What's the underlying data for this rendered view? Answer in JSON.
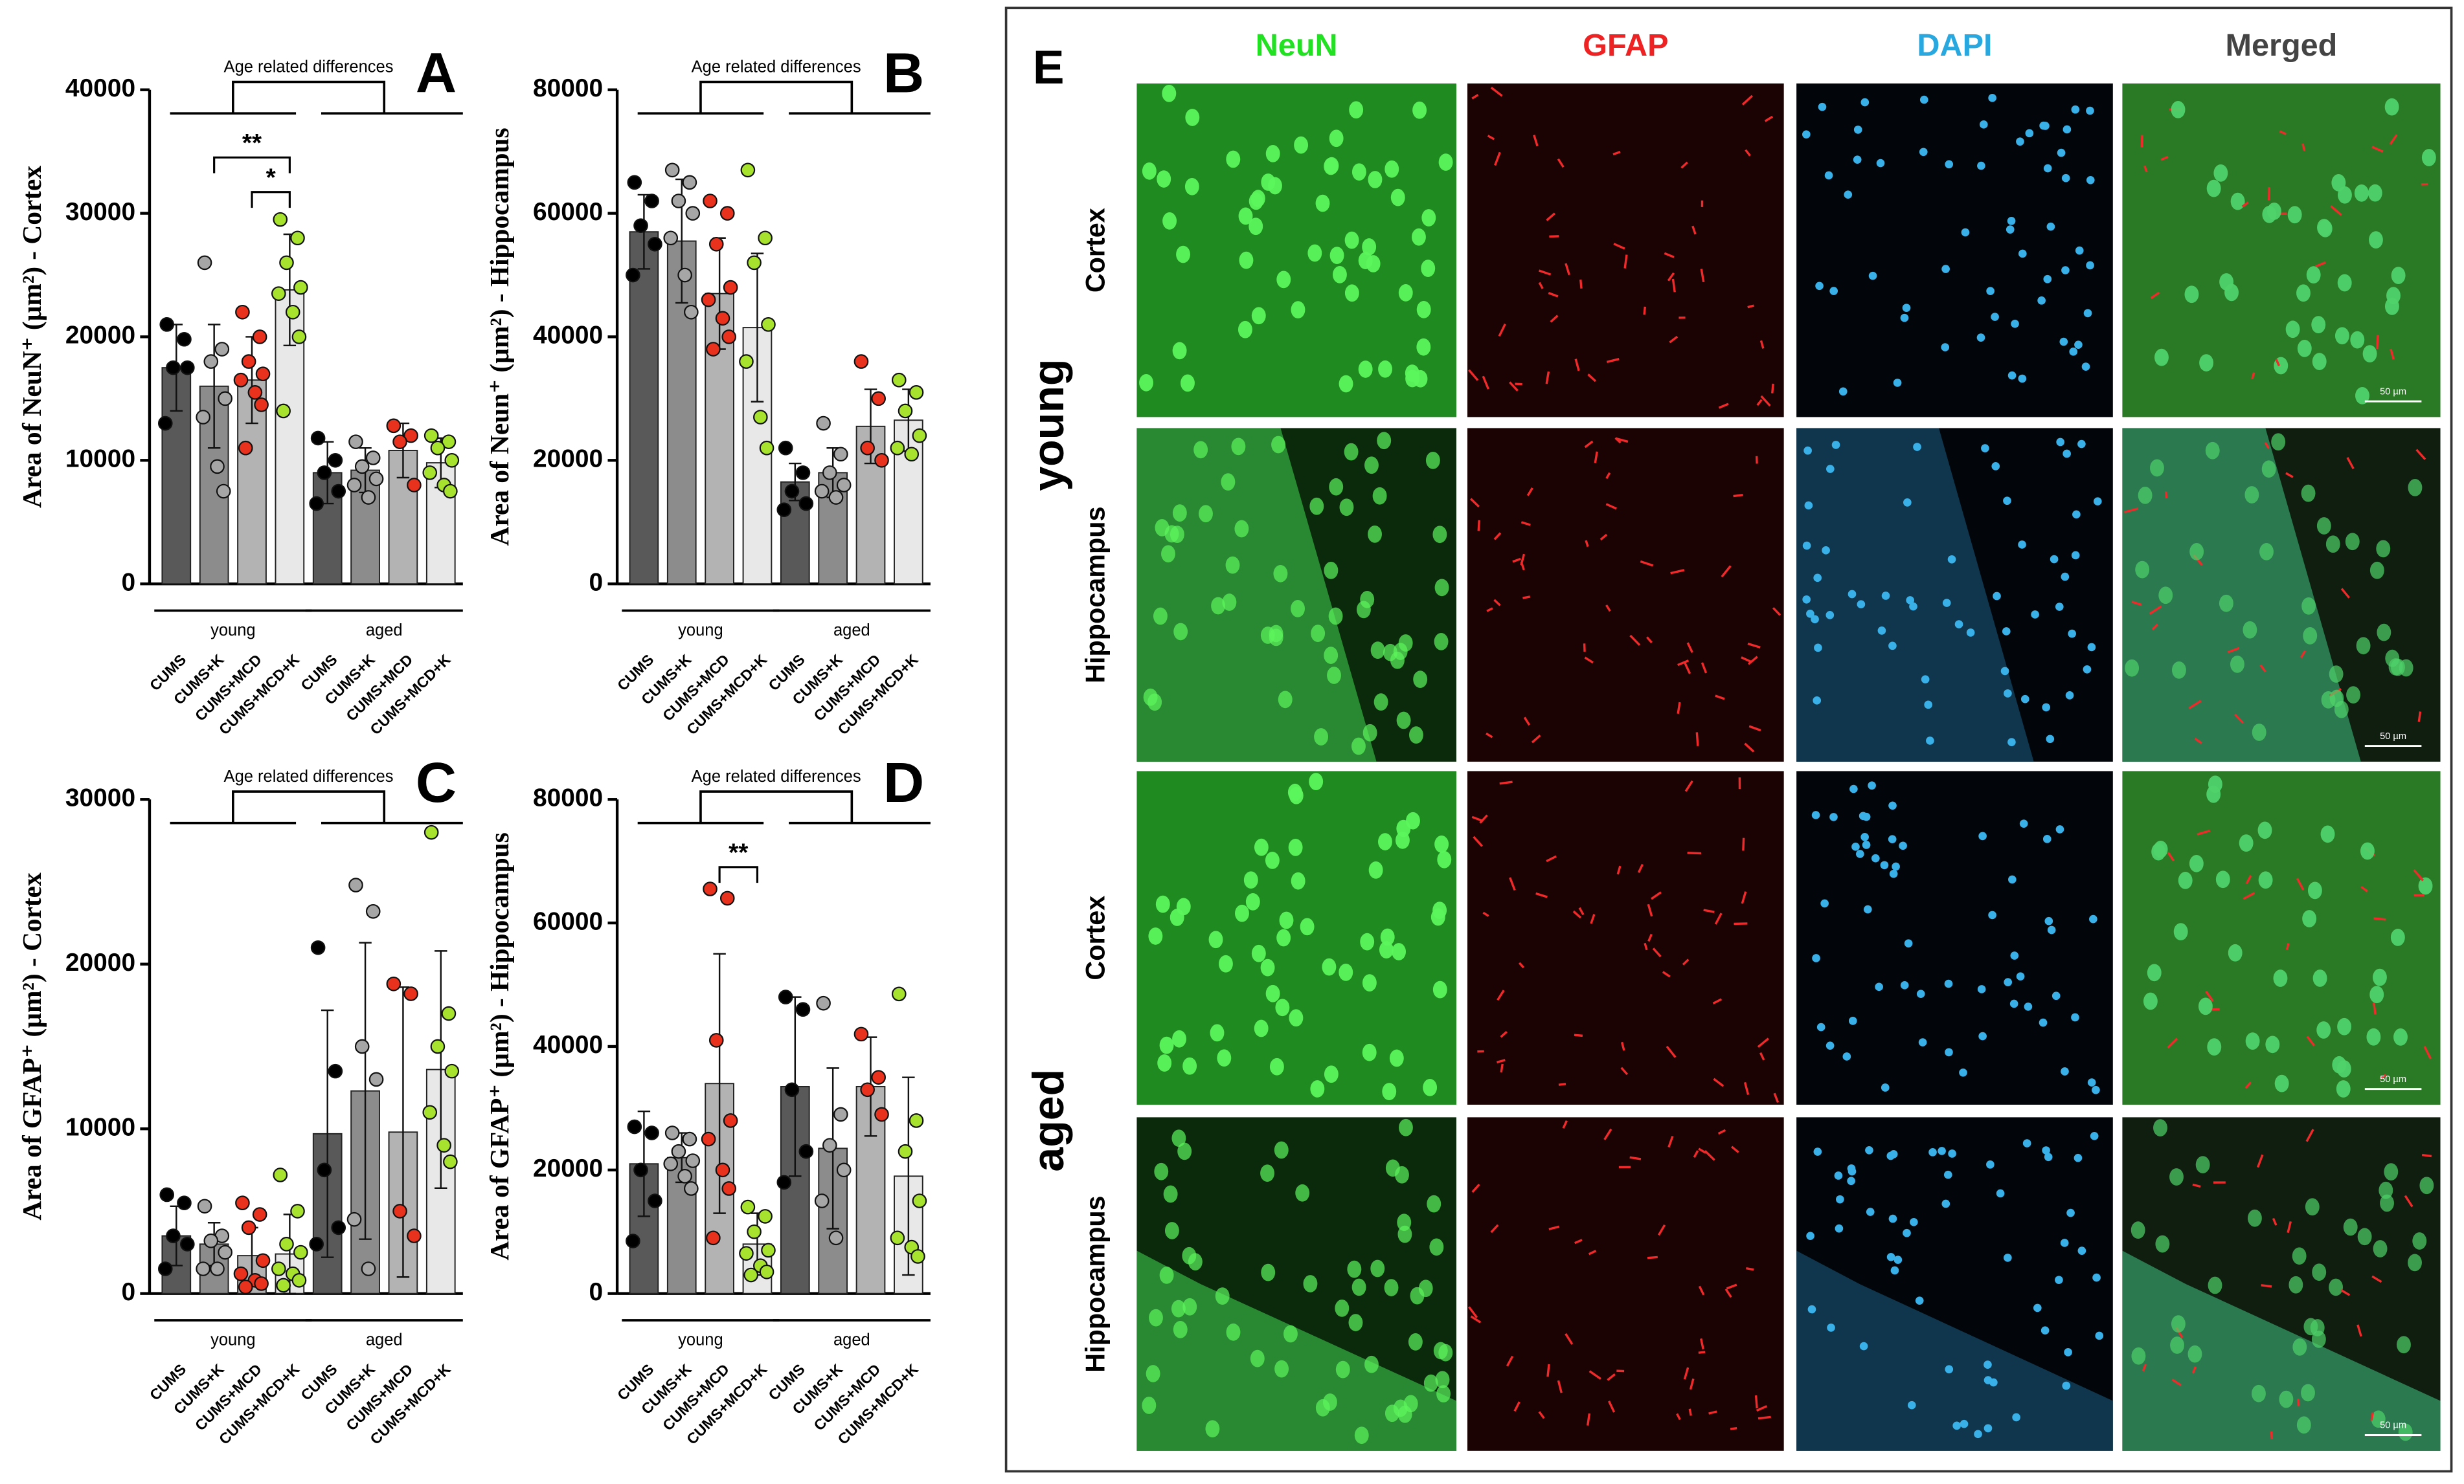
{
  "chart_data": [
    {
      "type": "bar",
      "panel": "A",
      "ylabel": "Area of NeuN⁺ (µm²) - Cortex",
      "comparison_label": "Age related differences",
      "categories": [
        "CUMS",
        "CUMS+K",
        "CUMS+MCD",
        "CUMS+MCD+K",
        "CUMS",
        "CUMS+K",
        "CUMS+MCD",
        "CUMS+MCD+K"
      ],
      "groups": [
        "young",
        "aged"
      ],
      "values": [
        17500,
        16000,
        16500,
        23800,
        9000,
        9200,
        10800,
        9800
      ],
      "errors": [
        3500,
        5000,
        3500,
        4500,
        2500,
        1800,
        2200,
        2000
      ],
      "points": [
        [
          21000,
          19800,
          17500,
          17500,
          13000
        ],
        [
          26000,
          19000,
          18000,
          15000,
          13500,
          9500,
          7500
        ],
        [
          22000,
          20000,
          18000,
          17000,
          16500,
          15500,
          14500,
          11000
        ],
        [
          29500,
          28000,
          26000,
          24000,
          23500,
          22000,
          20000,
          14000
        ],
        [
          11800,
          10000,
          9000,
          7500,
          6500
        ],
        [
          11500,
          10200,
          9500,
          8500,
          8000,
          7000
        ],
        [
          12800,
          12000,
          11500,
          8000
        ],
        [
          12000,
          11500,
          11000,
          10000,
          9000,
          8000,
          7500
        ]
      ],
      "bar_colors": [
        "#595959",
        "#8c8c8c",
        "#b3b3b3",
        "#e8e8e8",
        "#595959",
        "#8c8c8c",
        "#b3b3b3",
        "#e8e8e8"
      ],
      "point_colors": [
        "#000000",
        "#a6a6a6",
        "#e8321e",
        "#a6e22e",
        "#000000",
        "#a6a6a6",
        "#e8321e",
        "#a6e22e"
      ],
      "annotations": [
        {
          "text": "**",
          "between": [
            1,
            3
          ]
        },
        {
          "text": "*",
          "between": [
            2,
            3
          ]
        }
      ],
      "ylim": [
        0,
        40000
      ],
      "yticks": [
        0,
        10000,
        20000,
        30000,
        40000
      ]
    },
    {
      "type": "bar",
      "panel": "B",
      "ylabel": "Area of Neun⁺ (µm²) - Hippocampus",
      "comparison_label": "Age related differences",
      "categories": [
        "CUMS",
        "CUMS+K",
        "CUMS+MCD",
        "CUMS+MCD+K",
        "CUMS",
        "CUMS+K",
        "CUMS+MCD",
        "CUMS+MCD+K"
      ],
      "groups": [
        "young",
        "aged"
      ],
      "values": [
        57000,
        55500,
        47000,
        41500,
        16500,
        18000,
        25500,
        26500
      ],
      "errors": [
        6000,
        10000,
        9000,
        12000,
        3000,
        4000,
        6000,
        5000
      ],
      "points": [
        [
          65000,
          62000,
          58000,
          55000,
          50000
        ],
        [
          67000,
          65000,
          62000,
          60000,
          56000,
          50000,
          44000
        ],
        [
          62000,
          60000,
          55000,
          48000,
          46000,
          43000,
          40000,
          38000
        ],
        [
          67000,
          56000,
          52000,
          42000,
          36000,
          27000,
          22000
        ],
        [
          22000,
          18000,
          15000,
          13000,
          12000
        ],
        [
          26000,
          21000,
          18000,
          16000,
          15000,
          14000
        ],
        [
          36000,
          30000,
          22000,
          20000
        ],
        [
          33000,
          31000,
          28000,
          24000,
          22000,
          21000
        ]
      ],
      "bar_colors": [
        "#595959",
        "#8c8c8c",
        "#b3b3b3",
        "#e8e8e8",
        "#595959",
        "#8c8c8c",
        "#b3b3b3",
        "#e8e8e8"
      ],
      "point_colors": [
        "#000000",
        "#a6a6a6",
        "#e8321e",
        "#a6e22e",
        "#000000",
        "#a6a6a6",
        "#e8321e",
        "#a6e22e"
      ],
      "annotations": [],
      "ylim": [
        0,
        80000
      ],
      "yticks": [
        0,
        20000,
        40000,
        60000,
        80000
      ]
    },
    {
      "type": "bar",
      "panel": "C",
      "ylabel": "Area of GFAP⁺ (µm²) - Cortex",
      "comparison_label": "Age related differences",
      "categories": [
        "CUMS",
        "CUMS+K",
        "CUMS+MCD",
        "CUMS+MCD+K",
        "CUMS",
        "CUMS+K",
        "CUMS+MCD",
        "CUMS+MCD+K"
      ],
      "groups": [
        "young",
        "aged"
      ],
      "values": [
        3500,
        3000,
        2300,
        2400,
        9700,
        12300,
        9800,
        13600
      ],
      "errors": [
        1800,
        1300,
        1700,
        2400,
        7500,
        9000,
        8800,
        7200
      ],
      "points": [
        [
          6000,
          5500,
          3500,
          3000,
          1500
        ],
        [
          5300,
          3500,
          3200,
          2500,
          1500,
          1500
        ],
        [
          5500,
          4800,
          4000,
          2000,
          1200,
          800,
          600,
          400
        ],
        [
          7200,
          5000,
          3000,
          2500,
          1500,
          1200,
          800,
          500
        ],
        [
          21000,
          13500,
          7500,
          4000,
          3000
        ],
        [
          24800,
          23200,
          15000,
          13000,
          4500,
          1500
        ],
        [
          18800,
          18200,
          5000,
          3500
        ],
        [
          28000,
          17000,
          15000,
          13500,
          11000,
          9000,
          8000
        ]
      ],
      "bar_colors": [
        "#595959",
        "#8c8c8c",
        "#b3b3b3",
        "#e8e8e8",
        "#595959",
        "#8c8c8c",
        "#b3b3b3",
        "#e8e8e8"
      ],
      "point_colors": [
        "#000000",
        "#a6a6a6",
        "#e8321e",
        "#a6e22e",
        "#000000",
        "#a6a6a6",
        "#e8321e",
        "#a6e22e"
      ],
      "annotations": [],
      "ylim": [
        0,
        30000
      ],
      "yticks": [
        0,
        10000,
        20000,
        30000
      ]
    },
    {
      "type": "bar",
      "panel": "D",
      "ylabel": "Area of GFAP⁺ (µm²) - Hippocampus",
      "comparison_label": "Age related differences",
      "categories": [
        "CUMS",
        "CUMS+K",
        "CUMS+MCD",
        "CUMS+MCD+K",
        "CUMS",
        "CUMS+K",
        "CUMS+MCD",
        "CUMS+MCD+K"
      ],
      "groups": [
        "young",
        "aged"
      ],
      "values": [
        21000,
        22000,
        34000,
        8000,
        33500,
        23500,
        33500,
        19000
      ],
      "errors": [
        8500,
        4000,
        21000,
        5000,
        14500,
        13000,
        8000,
        16000
      ],
      "points": [
        [
          27000,
          26000,
          20000,
          15000,
          8500
        ],
        [
          26000,
          25000,
          23000,
          21500,
          21000,
          19000,
          17000
        ],
        [
          65500,
          64000,
          41000,
          28000,
          25000,
          20000,
          17000,
          9000
        ],
        [
          14000,
          12500,
          10000,
          7000,
          6500,
          4500,
          3500,
          3000
        ],
        [
          48000,
          46000,
          33000,
          23000,
          18000
        ],
        [
          47000,
          29000,
          24000,
          20000,
          15000,
          9000
        ],
        [
          42000,
          35000,
          33000,
          29000
        ],
        [
          48500,
          28000,
          23000,
          15000,
          9000,
          7500,
          6000
        ]
      ],
      "bar_colors": [
        "#595959",
        "#8c8c8c",
        "#b3b3b3",
        "#e8e8e8",
        "#595959",
        "#8c8c8c",
        "#b3b3b3",
        "#e8e8e8"
      ],
      "point_colors": [
        "#000000",
        "#a6a6a6",
        "#e8321e",
        "#a6e22e",
        "#000000",
        "#a6a6a6",
        "#e8321e",
        "#a6e22e"
      ],
      "annotations": [
        {
          "text": "**",
          "between": [
            2,
            3
          ]
        }
      ],
      "ylim": [
        0,
        80000
      ],
      "yticks": [
        0,
        20000,
        40000,
        60000,
        80000
      ]
    }
  ],
  "image_panel": {
    "label": "E",
    "columns": [
      "NeuN",
      "GFAP",
      "DAPI",
      "Merged"
    ],
    "column_colors": [
      "#22e022",
      "#ee2222",
      "#29a8e0",
      "#444444"
    ],
    "groups": [
      {
        "label": "young",
        "rows": [
          "Cortex",
          "Hippocampus"
        ]
      },
      {
        "label": "aged",
        "rows": [
          "Cortex",
          "Hippocampus"
        ]
      }
    ],
    "scale_bar": "50 µm"
  }
}
